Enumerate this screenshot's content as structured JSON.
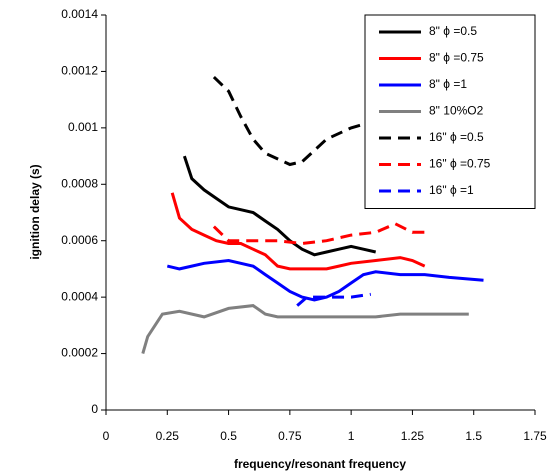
{
  "chart_data": {
    "type": "line",
    "xlabel": "frequency/resonant frequency",
    "ylabel": "ignition delay (s)",
    "xlim": [
      0,
      1.75
    ],
    "xticks": [
      0,
      0.25,
      0.5,
      0.75,
      1,
      1.25,
      1.5,
      1.75
    ],
    "ylim": [
      0,
      0.0014
    ],
    "yticks": [
      0,
      0.0002,
      0.0004,
      0.0006,
      0.0008,
      0.001,
      0.0012,
      0.0014
    ],
    "grid": false,
    "legend": "upper right",
    "series": [
      {
        "name": "8\"  ϕ =0.5",
        "color": "#000000",
        "dashed": false,
        "x": [
          0.32,
          0.35,
          0.4,
          0.45,
          0.5,
          0.55,
          0.6,
          0.65,
          0.7,
          0.75,
          0.8,
          0.85,
          0.9,
          0.95,
          1.0,
          1.05,
          1.1
        ],
        "values": [
          0.0009,
          0.00082,
          0.00078,
          0.00075,
          0.00072,
          0.00071,
          0.0007,
          0.00067,
          0.00064,
          0.0006,
          0.00057,
          0.00055,
          0.00056,
          0.00057,
          0.00058,
          0.00057,
          0.00056
        ]
      },
      {
        "name": "8\"  ϕ =0.75",
        "color": "#ff0000",
        "dashed": false,
        "x": [
          0.27,
          0.3,
          0.35,
          0.4,
          0.45,
          0.5,
          0.55,
          0.6,
          0.65,
          0.7,
          0.75,
          0.8,
          0.85,
          0.9,
          0.95,
          1.0,
          1.1,
          1.2,
          1.25,
          1.3
        ],
        "values": [
          0.00077,
          0.00068,
          0.00064,
          0.00062,
          0.0006,
          0.00059,
          0.00059,
          0.00057,
          0.00055,
          0.00051,
          0.0005,
          0.0005,
          0.0005,
          0.0005,
          0.00051,
          0.00052,
          0.00053,
          0.00054,
          0.00053,
          0.00051
        ]
      },
      {
        "name": "8\"  ϕ =1",
        "color": "#0000ff",
        "dashed": false,
        "x": [
          0.25,
          0.3,
          0.35,
          0.4,
          0.5,
          0.55,
          0.6,
          0.65,
          0.7,
          0.75,
          0.8,
          0.85,
          0.9,
          0.95,
          1.0,
          1.05,
          1.1,
          1.2,
          1.3,
          1.4,
          1.54
        ],
        "values": [
          0.00051,
          0.0005,
          0.00051,
          0.00052,
          0.00053,
          0.00052,
          0.00051,
          0.00048,
          0.00045,
          0.00042,
          0.0004,
          0.00039,
          0.0004,
          0.00042,
          0.00045,
          0.00048,
          0.00049,
          0.00048,
          0.00048,
          0.00047,
          0.00046
        ]
      },
      {
        "name": "8\" 10%O2",
        "color": "#808080",
        "dashed": false,
        "x": [
          0.15,
          0.17,
          0.2,
          0.23,
          0.3,
          0.4,
          0.5,
          0.6,
          0.65,
          0.7,
          0.8,
          0.9,
          1.0,
          1.1,
          1.2,
          1.3,
          1.4,
          1.48
        ],
        "values": [
          0.0002,
          0.00026,
          0.0003,
          0.00034,
          0.00035,
          0.00033,
          0.00036,
          0.00037,
          0.00034,
          0.00033,
          0.00033,
          0.00033,
          0.00033,
          0.00033,
          0.00034,
          0.00034,
          0.00034,
          0.00034
        ]
      },
      {
        "name": "16\"  ϕ =0.5",
        "color": "#000000",
        "dashed": true,
        "x": [
          0.44,
          0.5,
          0.55,
          0.6,
          0.65,
          0.7,
          0.75,
          0.8,
          0.85,
          0.9,
          1.0,
          1.08
        ],
        "values": [
          0.00118,
          0.00113,
          0.00104,
          0.00096,
          0.00091,
          0.00089,
          0.00087,
          0.00088,
          0.00092,
          0.00096,
          0.001,
          0.00102
        ]
      },
      {
        "name": "16\"  ϕ =0.75",
        "color": "#ff0000",
        "dashed": true,
        "x": [
          0.44,
          0.5,
          0.6,
          0.7,
          0.8,
          0.9,
          1.0,
          1.1,
          1.18,
          1.25,
          1.3
        ],
        "values": [
          0.00065,
          0.0006,
          0.0006,
          0.0006,
          0.00059,
          0.0006,
          0.00062,
          0.00063,
          0.00066,
          0.00063,
          0.00063
        ]
      },
      {
        "name": "16\"  ϕ =1",
        "color": "#0000ff",
        "dashed": true,
        "x": [
          0.78,
          0.82,
          0.9,
          1.0,
          1.08
        ],
        "values": [
          0.00037,
          0.0004,
          0.0004,
          0.0004,
          0.00041
        ]
      }
    ]
  }
}
